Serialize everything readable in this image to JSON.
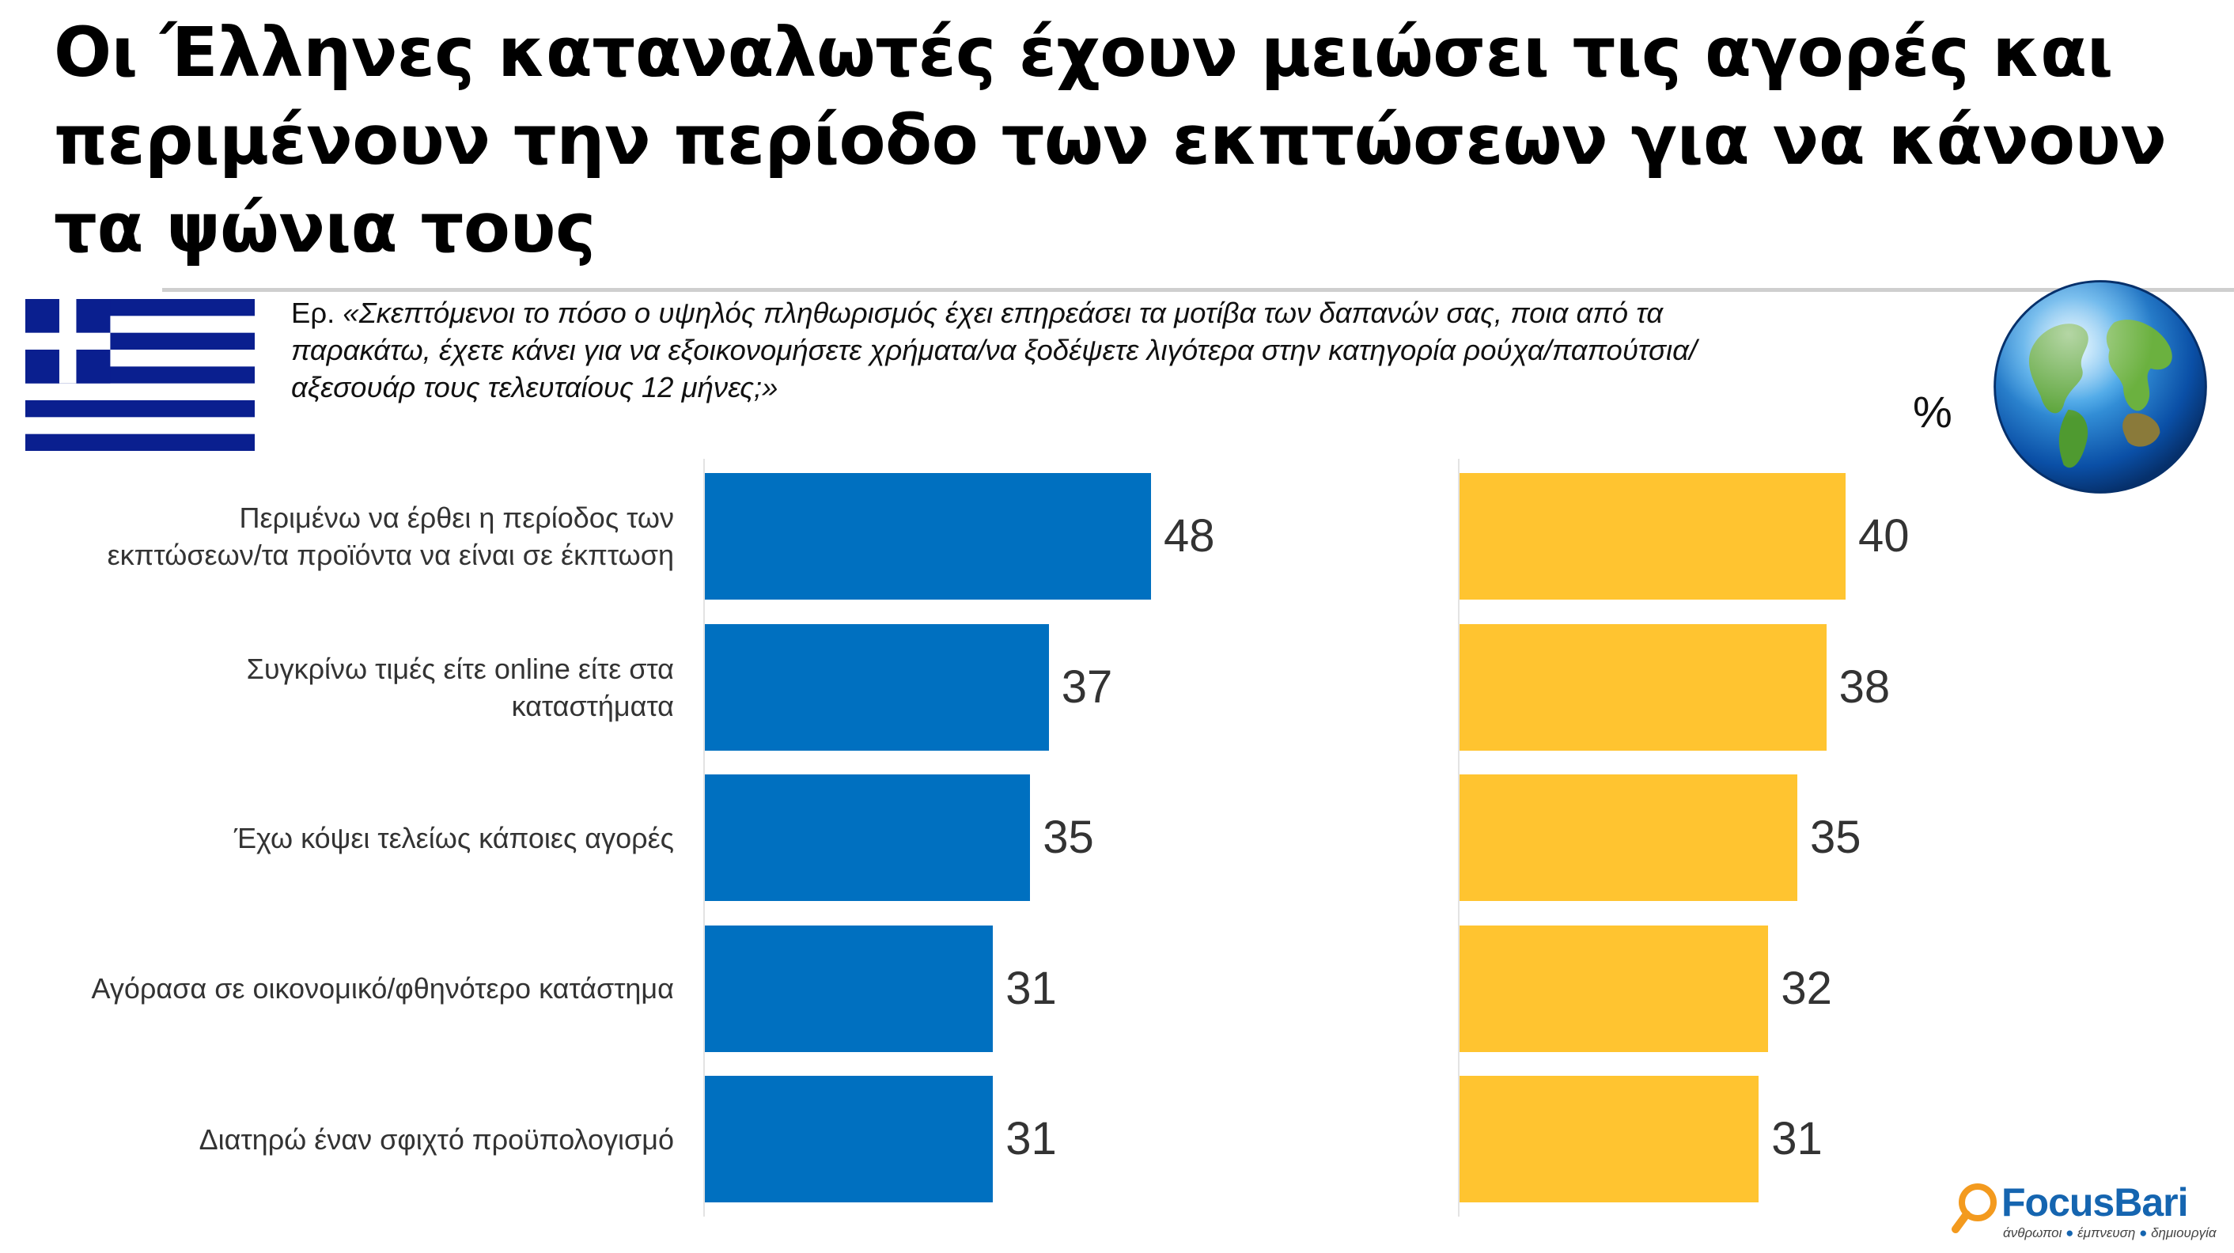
{
  "header": {
    "title_line1": "Οι Έλληνες καταναλωτές έχουν μειώσει τις αγορές και",
    "title_line2": "περιμένουν την περίοδο των εκπτώσεων για να κάνουν",
    "title_line3": "τα ψώνια τους"
  },
  "question": {
    "prefix": "Ερ. ",
    "text": "«Σκεπτόμενοι το πόσο ο υψηλός πληθωρισμός έχει επηρεάσει τα μοτίβα των δαπανών σας, ποια από τα παρακάτω, έχετε κάνει για να εξοικονομήσετε χρήματα/να ξοδέψετε λιγότερα στην κατηγορία ρούχα/παπούτσια/αξεσουάρ τους τελευταίους 12 μήνες;»"
  },
  "unit_label": "%",
  "logo": {
    "word": "FocusBari",
    "tagline_parts": [
      "άνθρωποι",
      "έμπνευση",
      "δημιουργία"
    ]
  },
  "icons": {
    "flag": "greece-flag-icon",
    "globe": "globe-icon",
    "logo": "focusbari-magnifier-icon"
  },
  "colors": {
    "series_greece": "#0070c0",
    "series_global": "#ffc430",
    "flag_blue": "#0a1f8f",
    "logo_blue": "#1565b0",
    "logo_orange": "#f39a1e"
  },
  "chart_data": {
    "type": "bar",
    "orientation": "horizontal",
    "categories": [
      "Περιμένω να έρθει η περίοδος των εκπτώσεων/τα προϊόντα να είναι σε έκπτωση",
      "Συγκρίνω τιμές είτε online είτε στα καταστήματα",
      "Έχω κόψει τελείως κάποιες αγορές",
      "Αγόρασα σε οικονομικό/φθηνότερο κατάστημα",
      "Διατηρώ έναν σφιχτό προϋπολογισμό"
    ],
    "category_lines": [
      [
        "Περιμένω να έρθει η περίοδος των",
        "εκπτώσεων/τα προϊόντα να είναι σε έκπτωση"
      ],
      [
        "Συγκρίνω τιμές είτε online είτε στα",
        "καταστήματα"
      ],
      [
        "Έχω κόψει τελείως κάποιες αγορές"
      ],
      [
        "Αγόρασα σε οικονομικό/φθηνότερο κατάστημα"
      ],
      [
        "Διατηρώ έναν σφιχτό προϋπολογισμό"
      ]
    ],
    "series": [
      {
        "key": "greece",
        "values": [
          48,
          37,
          35,
          31,
          31
        ]
      },
      {
        "key": "global",
        "values": [
          40,
          38,
          35,
          32,
          31
        ]
      }
    ],
    "xlim": [
      0,
      48
    ],
    "legend": "flag icon above left panel, globe icon above right panel",
    "grid": false,
    "data_labels": true
  }
}
